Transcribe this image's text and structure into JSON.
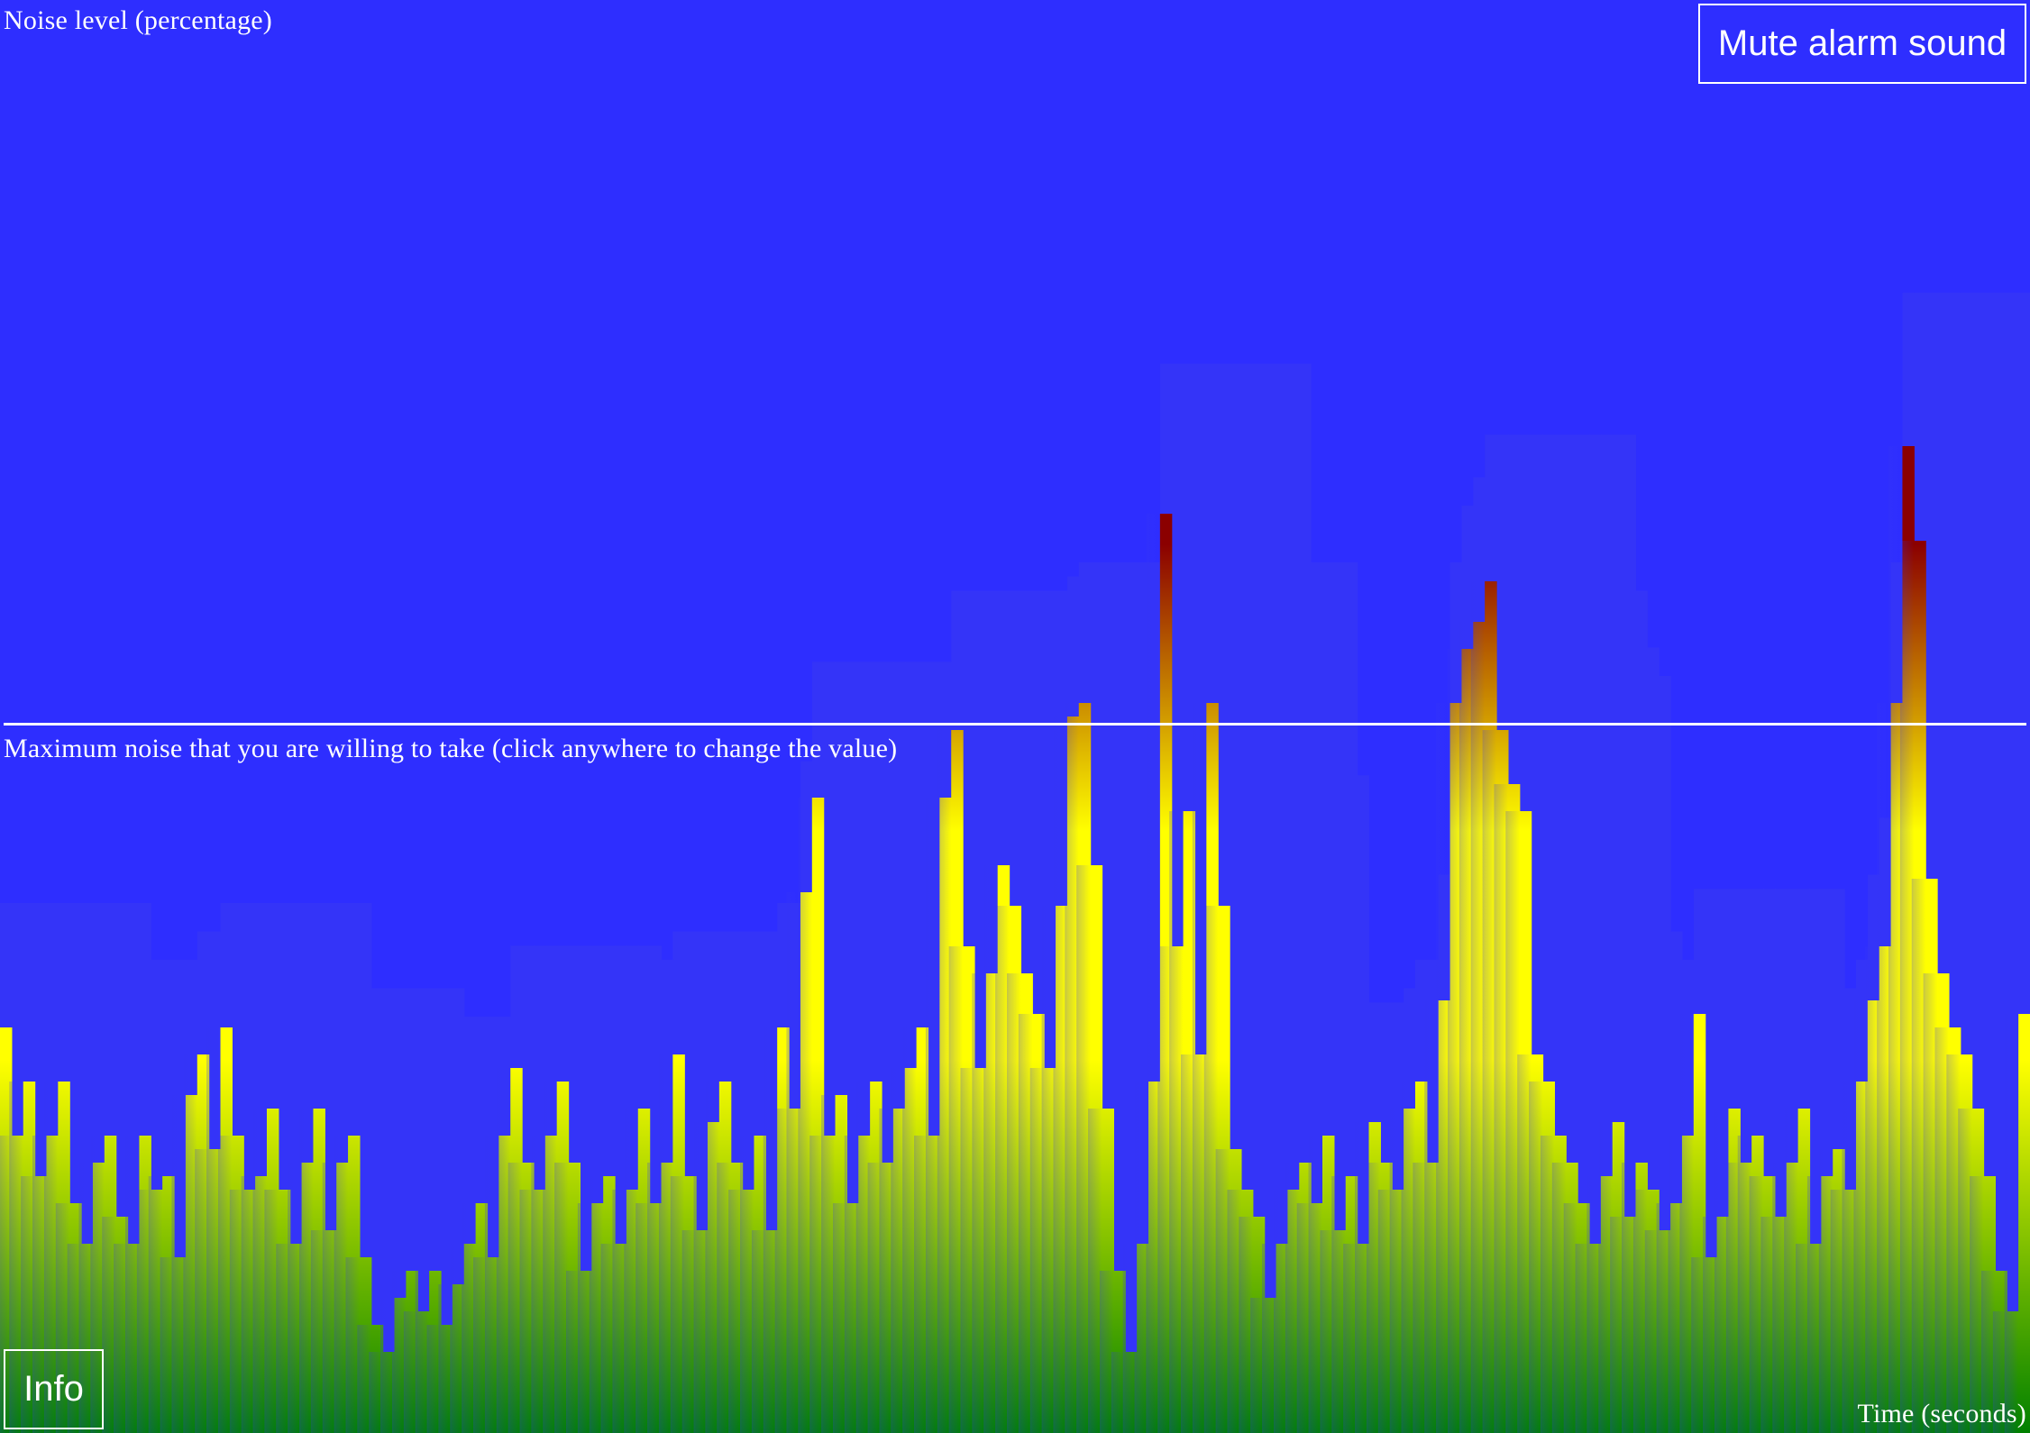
{
  "ylabel": "Noise level (percentage)",
  "xlabel": "Time (seconds)",
  "threshold_label": "Maximum noise that you are willing to take (click anywhere to change the value)",
  "buttons": {
    "mute": "Mute alarm sound",
    "info": "Info"
  },
  "colors": {
    "background": "#2e2eff",
    "low": "#008000",
    "mid": "#ffff00",
    "high": "#8b0000",
    "threshold_line": "#ffffff"
  },
  "chart_data": {
    "type": "area",
    "title": "",
    "ylabel": "Noise level (percentage)",
    "xlabel": "Time (seconds)",
    "ylim": [
      0,
      100
    ],
    "threshold": 46.5,
    "series": [
      {
        "values": [
          24,
          16,
          20,
          13,
          16,
          20,
          11,
          8,
          14,
          16,
          10,
          8,
          16,
          12,
          13,
          7,
          19,
          22,
          15,
          24,
          16,
          12,
          13,
          18,
          12,
          8,
          14,
          18,
          9,
          14,
          16,
          7,
          2,
          0,
          4,
          6,
          3,
          6,
          2,
          5,
          8,
          11,
          7,
          16,
          21,
          14,
          12,
          16,
          20,
          14,
          6,
          11,
          13,
          8,
          12,
          18,
          11,
          14,
          22,
          13,
          9,
          17,
          20,
          14,
          12,
          16,
          9,
          24,
          18,
          34,
          41,
          16,
          19,
          11,
          16,
          20,
          14,
          18,
          21,
          24,
          16,
          41,
          46,
          30,
          21,
          28,
          36,
          33,
          28,
          25,
          21,
          33,
          47,
          48,
          36,
          18,
          6,
          0,
          8,
          20,
          62,
          30,
          40,
          22,
          48,
          33,
          15,
          12,
          10,
          4,
          8,
          12,
          14,
          11,
          16,
          9,
          13,
          8,
          17,
          14,
          12,
          18,
          20,
          14,
          26,
          48,
          52,
          54,
          57,
          46,
          42,
          40,
          22,
          20,
          16,
          14,
          11,
          8,
          13,
          17,
          10,
          14,
          12,
          9,
          11,
          16,
          25,
          7,
          10,
          18,
          14,
          16,
          13,
          10,
          14,
          18,
          8,
          13,
          15,
          12,
          20,
          26,
          30,
          48,
          67,
          60,
          35,
          28,
          24,
          22,
          18,
          13,
          6,
          3,
          25
        ]
      }
    ]
  }
}
